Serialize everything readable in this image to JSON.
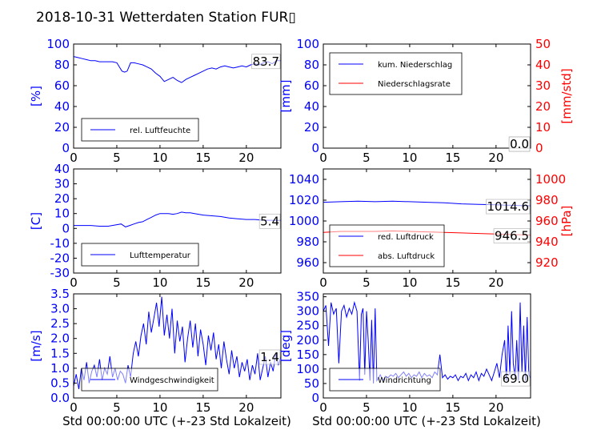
{
  "title": "2018-10-31 Wetterdaten Station FUR▯",
  "xlabel": "Std 00:00:00 UTC (+-23 Std Lokalzeit)",
  "colors": {
    "blue": "#0000ff",
    "red": "#ff0000",
    "light_blue": "#8080ff"
  },
  "chart_data": [
    {
      "type": "line",
      "panel": "humidity",
      "ylabel": "[%]",
      "xlim": [
        0,
        24
      ],
      "ylim": [
        0,
        100
      ],
      "xticks": [
        0,
        5,
        10,
        15,
        20
      ],
      "yticks": [
        0,
        20,
        40,
        60,
        80,
        100
      ],
      "legend": "lower-left",
      "last_value_label": "83.7",
      "series": [
        {
          "name": "rel. Luftfeuchte",
          "color": "blue",
          "x": [
            0,
            0.5,
            1,
            1.5,
            2,
            2.5,
            3,
            3.5,
            4,
            4.5,
            5,
            5.3,
            5.6,
            5.9,
            6.2,
            6.6,
            7,
            7.5,
            8,
            8.5,
            9,
            9.5,
            10,
            10.5,
            11,
            11.5,
            12,
            12.5,
            13,
            13.5,
            14,
            14.5,
            15,
            15.5,
            16,
            16.5,
            17,
            17.5,
            18,
            18.5,
            19,
            19.5,
            20,
            20.5,
            21,
            21.5,
            22,
            22.5,
            23,
            23.5,
            24
          ],
          "y": [
            88,
            87,
            86,
            85,
            84,
            84,
            83,
            83,
            83,
            83,
            82,
            78,
            74,
            73,
            74,
            82,
            82,
            81,
            80,
            78,
            76,
            72,
            69,
            64,
            66,
            68,
            65,
            63,
            66,
            68,
            70,
            72,
            74,
            76,
            77,
            76,
            78,
            79,
            78,
            77,
            78,
            79,
            78,
            80,
            81,
            80,
            82,
            83,
            81,
            84,
            84
          ]
        }
      ]
    },
    {
      "type": "line",
      "panel": "precipitation",
      "ylabel": "[mm]",
      "ylabel_right": "[mm/std]",
      "xlim": [
        0,
        24
      ],
      "ylim": [
        0,
        100
      ],
      "ylim_right": [
        0,
        50
      ],
      "xticks": [
        0,
        5,
        10,
        15,
        20
      ],
      "yticks": [
        0,
        20,
        40,
        60,
        80,
        100
      ],
      "yticks_right": [
        0,
        10,
        20,
        30,
        40,
        50
      ],
      "legend": "top-left",
      "last_value_label": "0.0",
      "last_value_label_right": "0.0",
      "series": [
        {
          "name": "kum. Niederschlag",
          "color": "blue",
          "x": [
            0,
            24
          ],
          "y": [
            0,
            0
          ]
        },
        {
          "name": "Niederschlagsrate",
          "color": "red",
          "x": [
            0,
            24
          ],
          "y": [
            0,
            0
          ]
        }
      ]
    },
    {
      "type": "line",
      "panel": "temperature",
      "ylabel": "[C]",
      "xlim": [
        0,
        24
      ],
      "ylim": [
        -30,
        40
      ],
      "xticks": [
        0,
        5,
        10,
        15,
        20
      ],
      "yticks": [
        -30,
        -20,
        -10,
        0,
        10,
        20,
        30,
        40
      ],
      "legend": "lower-left",
      "last_value_label": "5.4",
      "series": [
        {
          "name": "Lufttemperatur",
          "color": "blue",
          "x": [
            0,
            1,
            2,
            3,
            4,
            5,
            5.5,
            6,
            6.5,
            7,
            7.5,
            8,
            8.5,
            9,
            9.5,
            10,
            10.5,
            11,
            11.5,
            12,
            12.5,
            13,
            13.5,
            14,
            15,
            16,
            17,
            18,
            19,
            20,
            21,
            22,
            23,
            24
          ],
          "y": [
            2,
            2,
            2,
            1.5,
            1.5,
            2.5,
            3,
            1,
            2,
            3,
            4,
            4.5,
            6,
            7.5,
            9,
            10,
            10,
            10,
            9.5,
            10,
            11,
            10.5,
            10.5,
            10,
            9,
            8.5,
            8,
            7,
            6.5,
            6,
            6,
            5.5,
            5.5,
            5.4
          ]
        }
      ]
    },
    {
      "type": "line",
      "panel": "pressure",
      "ylabel_right": "[hPa]",
      "xlim": [
        0,
        24
      ],
      "ylim": [
        950,
        1050
      ],
      "ylim_right": [
        910,
        1010
      ],
      "xticks": [
        0,
        5,
        10,
        15,
        20
      ],
      "yticks": [
        960,
        980,
        1000,
        1020,
        1040
      ],
      "yticks_right": [
        920,
        940,
        960,
        980,
        1000
      ],
      "legend": "lower-left",
      "last_value_label": "1014.6",
      "last_value_label_right": "946.5",
      "series": [
        {
          "name": "red. Luftdruck",
          "color": "blue",
          "x": [
            0,
            2,
            4,
            6,
            8,
            10,
            12,
            14,
            16,
            18,
            20,
            22,
            24
          ],
          "y": [
            1018,
            1018.5,
            1019,
            1018.5,
            1019,
            1018.5,
            1018,
            1017.5,
            1016.5,
            1016,
            1015.5,
            1015,
            1014.6
          ]
        },
        {
          "name": "abs. Luftdruck",
          "color": "red",
          "x": [
            0,
            2,
            4,
            6,
            8,
            10,
            12,
            14,
            16,
            18,
            20,
            22,
            24
          ],
          "y": [
            949,
            950,
            950,
            950,
            950.5,
            950,
            949.5,
            949,
            948.5,
            948,
            947.5,
            947,
            946.5
          ]
        }
      ]
    },
    {
      "type": "line",
      "panel": "wind_speed",
      "ylabel": "[m/s]",
      "xlim": [
        0,
        24
      ],
      "ylim": [
        0,
        3.5
      ],
      "xticks": [
        0,
        5,
        10,
        15,
        20
      ],
      "yticks": [
        0.0,
        0.5,
        1.0,
        1.5,
        2.0,
        2.5,
        3.0,
        3.5
      ],
      "legend": "lower-left",
      "last_value_label": "1.4",
      "series": [
        {
          "name": "Windgeschwindigkeit",
          "color": "blue",
          "x": [
            0,
            0.3,
            0.6,
            0.9,
            1.2,
            1.5,
            1.8,
            2.1,
            2.4,
            2.7,
            3,
            3.3,
            3.6,
            3.9,
            4.2,
            4.5,
            4.8,
            5.1,
            5.4,
            5.7,
            6,
            6.3,
            6.6,
            6.9,
            7.2,
            7.5,
            7.8,
            8.1,
            8.4,
            8.7,
            9,
            9.3,
            9.6,
            9.9,
            10.2,
            10.5,
            10.8,
            11.1,
            11.4,
            11.7,
            12,
            12.3,
            12.6,
            12.9,
            13.2,
            13.5,
            13.8,
            14.1,
            14.4,
            14.7,
            15,
            15.3,
            15.6,
            15.9,
            16.2,
            16.5,
            16.8,
            17.1,
            17.4,
            17.7,
            18,
            18.3,
            18.6,
            18.9,
            19.2,
            19.5,
            19.8,
            20.1,
            20.4,
            20.7,
            21,
            21.3,
            21.6,
            21.9,
            22.2,
            22.5,
            22.8,
            23.1,
            23.4,
            23.7,
            24
          ],
          "y": [
            0.4,
            0.8,
            0.3,
            1.0,
            0.6,
            1.2,
            0.5,
            0.9,
            1.1,
            0.7,
            1.3,
            0.6,
            1.0,
            0.8,
            1.4,
            0.7,
            1.0,
            0.6,
            0.9,
            0.8,
            0.5,
            1.1,
            0.7,
            1.5,
            1.9,
            1.4,
            2.1,
            2.5,
            1.8,
            2.9,
            2.2,
            2.7,
            3.2,
            2.4,
            3.4,
            2.1,
            2.8,
            2.0,
            3.0,
            1.5,
            2.6,
            1.9,
            2.4,
            1.2,
            2.0,
            2.6,
            1.7,
            2.5,
            1.4,
            2.3,
            1.8,
            1.1,
            2.1,
            1.6,
            2.2,
            1.3,
            1.8,
            1.0,
            1.9,
            1.3,
            0.8,
            1.6,
            1.0,
            1.4,
            0.7,
            1.2,
            0.9,
            1.3,
            0.6,
            1.1,
            0.8,
            1.5,
            0.6,
            1.0,
            1.4,
            0.7,
            1.2,
            0.9,
            1.5,
            1.1,
            1.4
          ]
        }
      ]
    },
    {
      "type": "line",
      "panel": "wind_direction",
      "ylabel": "[deg]",
      "xlim": [
        0,
        24
      ],
      "ylim": [
        0,
        360
      ],
      "xticks": [
        0,
        5,
        10,
        15,
        20
      ],
      "yticks": [
        0,
        50,
        100,
        150,
        200,
        250,
        300,
        350
      ],
      "legend": "lower-left",
      "last_value_label": "69.0",
      "series": [
        {
          "name": "Windrichtung",
          "color": "blue",
          "x": [
            0,
            0.3,
            0.6,
            0.9,
            1.2,
            1.5,
            1.8,
            2.1,
            2.4,
            2.7,
            3,
            3.3,
            3.6,
            3.9,
            4.2,
            4.4,
            4.6,
            4.8,
            5,
            5.2,
            5.4,
            5.6,
            5.8,
            6,
            6.2,
            6.4,
            6.6,
            6.9,
            7.2,
            7.5,
            7.8,
            8.1,
            8.4,
            8.7,
            9,
            9.3,
            9.6,
            9.9,
            10.2,
            10.5,
            10.8,
            11.1,
            11.4,
            11.7,
            12,
            12.3,
            12.6,
            12.9,
            13.2,
            13.5,
            13.8,
            14.1,
            14.4,
            14.7,
            15,
            15.3,
            15.6,
            15.9,
            16.2,
            16.5,
            16.8,
            17.1,
            17.4,
            17.7,
            18,
            18.3,
            18.6,
            18.9,
            19.2,
            19.5,
            19.8,
            20.1,
            20.4,
            20.7,
            21,
            21.2,
            21.4,
            21.6,
            21.8,
            22,
            22.2,
            22.4,
            22.6,
            22.8,
            23,
            23.2,
            23.4,
            23.6,
            23.8,
            24
          ],
          "y": [
            300,
            320,
            180,
            330,
            290,
            310,
            120,
            300,
            320,
            280,
            310,
            290,
            330,
            300,
            60,
            290,
            310,
            80,
            300,
            200,
            60,
            270,
            50,
            310,
            60,
            70,
            80,
            60,
            75,
            70,
            80,
            75,
            85,
            70,
            80,
            90,
            75,
            85,
            70,
            80,
            75,
            90,
            70,
            85,
            75,
            80,
            70,
            90,
            80,
            150,
            70,
            80,
            65,
            75,
            70,
            80,
            60,
            75,
            70,
            85,
            60,
            80,
            70,
            90,
            60,
            85,
            75,
            100,
            80,
            60,
            90,
            120,
            70,
            150,
            200,
            60,
            250,
            80,
            300,
            120,
            70,
            200,
            60,
            330,
            90,
            250,
            60,
            280,
            80,
            69
          ]
        }
      ]
    }
  ]
}
